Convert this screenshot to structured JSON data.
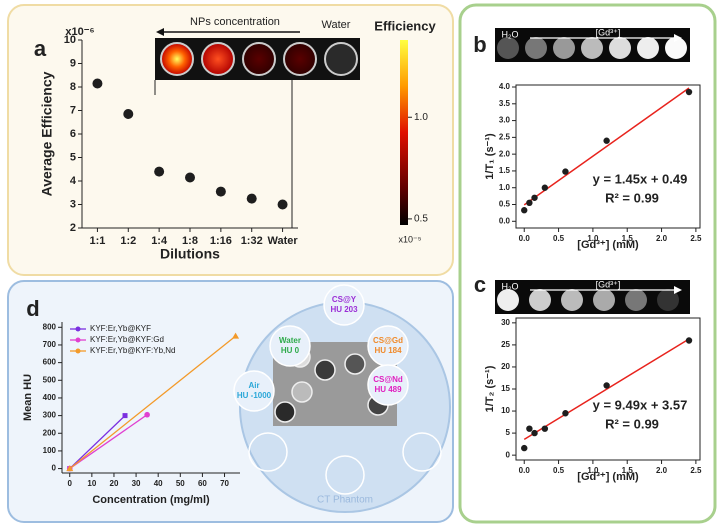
{
  "chart_data": [
    {
      "type": "scatter",
      "panel_label": "a",
      "categories": [
        "1:1",
        "1:2",
        "1:4",
        "1:8",
        "1:16",
        "1:32",
        "Water"
      ],
      "values": [
        8.15,
        6.85,
        4.4,
        4.15,
        3.55,
        3.25,
        3.0
      ],
      "color": "#1e1e1e",
      "xlabel": "Dilutions",
      "ylabel": "Average Efficiency",
      "y_multiplier": "x10⁻⁶",
      "ylim": [
        2,
        10
      ],
      "yticks": [
        2,
        3,
        4,
        5,
        6,
        7,
        8,
        9,
        10
      ],
      "image_labels": {
        "arrow": "NPs concentration",
        "water": "Water"
      },
      "colorbar": {
        "title": "Efficiency",
        "multiplier": "x10⁻⁵",
        "lim": [
          0.47,
          1.38
        ],
        "ticks": [
          {
            "value": 1,
            "label": "1.0"
          },
          0.5
        ]
      }
    },
    {
      "type": "scatter",
      "panel_label": "b",
      "x": [
        0,
        0.075,
        0.15,
        0.3,
        0.6,
        1.2,
        2.4
      ],
      "values": [
        0.33,
        0.55,
        0.7,
        1.0,
        1.48,
        2.4,
        3.85
      ],
      "color": "#1e1e1e",
      "fit": {
        "slope": 1.45,
        "intercept": 0.49,
        "color": "#e8231d",
        "equation": "y = 1.45x + 0.49",
        "r2": "R² = 0.99"
      },
      "xlabel": "[Gd³⁺] (mM)",
      "ylabel": "1/T₁ (s⁻¹)",
      "xlim": [
        -0.12,
        2.56
      ],
      "ylim": [
        -0.2,
        4.06
      ],
      "xticks": [
        {
          "value": 0,
          "label": "0.0"
        },
        0.5,
        {
          "value": 1,
          "label": "1.0"
        },
        1.5,
        {
          "value": 2,
          "label": "2.0"
        },
        2.5
      ],
      "yticks": [
        {
          "value": 0,
          "label": "0.0"
        },
        0.5,
        {
          "value": 1,
          "label": "1.0"
        },
        1.5,
        {
          "value": 2,
          "label": "2.0"
        },
        2.5,
        {
          "value": 3,
          "label": "3.0"
        },
        3.5,
        {
          "value": 4,
          "label": "4.0"
        }
      ],
      "image_labels": {
        "water": "H₂O",
        "arrow": "[Gd³⁺]"
      }
    },
    {
      "type": "scatter",
      "panel_label": "c",
      "x": [
        0,
        0.075,
        0.15,
        0.3,
        0.6,
        1.2,
        2.4
      ],
      "values": [
        1.6,
        6.0,
        5.0,
        6.0,
        9.5,
        15.8,
        26.0
      ],
      "color": "#1e1e1e",
      "fit": {
        "slope": 9.49,
        "intercept": 3.57,
        "color": "#e8231d",
        "equation": "y = 9.49x + 3.57",
        "r2": "R² = 0.99"
      },
      "xlabel": "[Gd³⁺] (mM)",
      "ylabel": "1/T₂ (s⁻¹)",
      "xlim": [
        -0.12,
        2.56
      ],
      "ylim": [
        -1.1,
        31.1
      ],
      "xticks": [
        {
          "value": 0,
          "label": "0.0"
        },
        0.5,
        {
          "value": 1,
          "label": "1.0"
        },
        1.5,
        {
          "value": 2,
          "label": "2.0"
        },
        2.5
      ],
      "yticks": [
        0,
        5,
        10,
        15,
        20,
        25,
        30
      ],
      "image_labels": {
        "water": "H₂O",
        "arrow": "[Gd³⁺]"
      }
    },
    {
      "type": "line",
      "panel_label": "d",
      "series": [
        {
          "name": "KYF:Er,Yb@KYF",
          "color": "#7b2fe0",
          "marker": "square",
          "x": [
            0,
            25
          ],
          "values": [
            0,
            300
          ]
        },
        {
          "name": "KYF:Er,Yb@KYF:Gd",
          "color": "#e040d0",
          "marker": "circle",
          "x": [
            0,
            35
          ],
          "values": [
            0,
            305
          ]
        },
        {
          "name": "KYF:Er,Yb@KYF:Yb,Nd",
          "color": "#f39a2a",
          "marker": "triangle",
          "x": [
            0,
            75
          ],
          "values": [
            0,
            750
          ]
        }
      ],
      "xlabel": "Concentration (mg/ml)",
      "ylabel": "Mean HU",
      "xlim": [
        -3.5,
        77
      ],
      "ylim": [
        -25,
        830
      ],
      "xticks": [
        0,
        10,
        20,
        30,
        40,
        50,
        60,
        70
      ],
      "yticks": [
        0,
        100,
        200,
        300,
        400,
        500,
        600,
        700,
        800
      ],
      "legend": "upper left",
      "phantom": {
        "title": "CT Phantom",
        "samples": [
          {
            "name": "Water",
            "hu": "HU 0",
            "color": "#2eaa4a"
          },
          {
            "name": "CS@Y",
            "hu": "HU 203",
            "color": "#9b2fd6"
          },
          {
            "name": "CS@Gd",
            "hu": "HU 184",
            "color": "#f08a2a"
          },
          {
            "name": "Air",
            "hu": "HU -1000",
            "color": "#2aa7d8"
          },
          {
            "name": "CS@Nd",
            "hu": "HU 489",
            "color": "#e020c0"
          }
        ]
      }
    }
  ]
}
